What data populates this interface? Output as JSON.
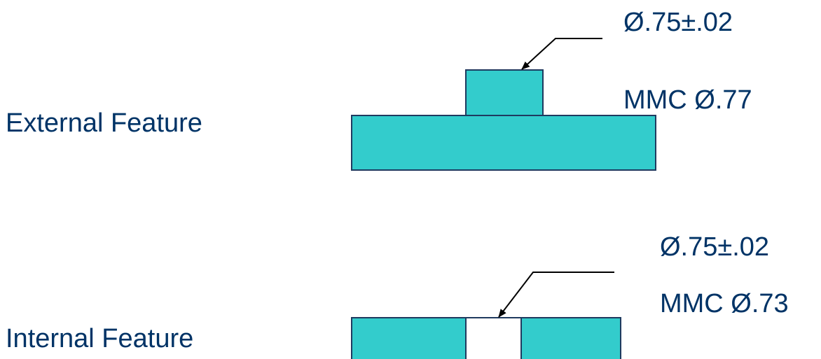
{
  "colors": {
    "text": "#003366",
    "fill": "#33CCCC",
    "stroke": "#1F3A5F",
    "leader": "#000000"
  },
  "external": {
    "label": "External Feature",
    "dimension": "Ø.75±.02",
    "mmc": "MMC Ø.77"
  },
  "internal": {
    "label": "Internal Feature",
    "dimension": "Ø.75±.02",
    "mmc": "MMC Ø.73"
  }
}
